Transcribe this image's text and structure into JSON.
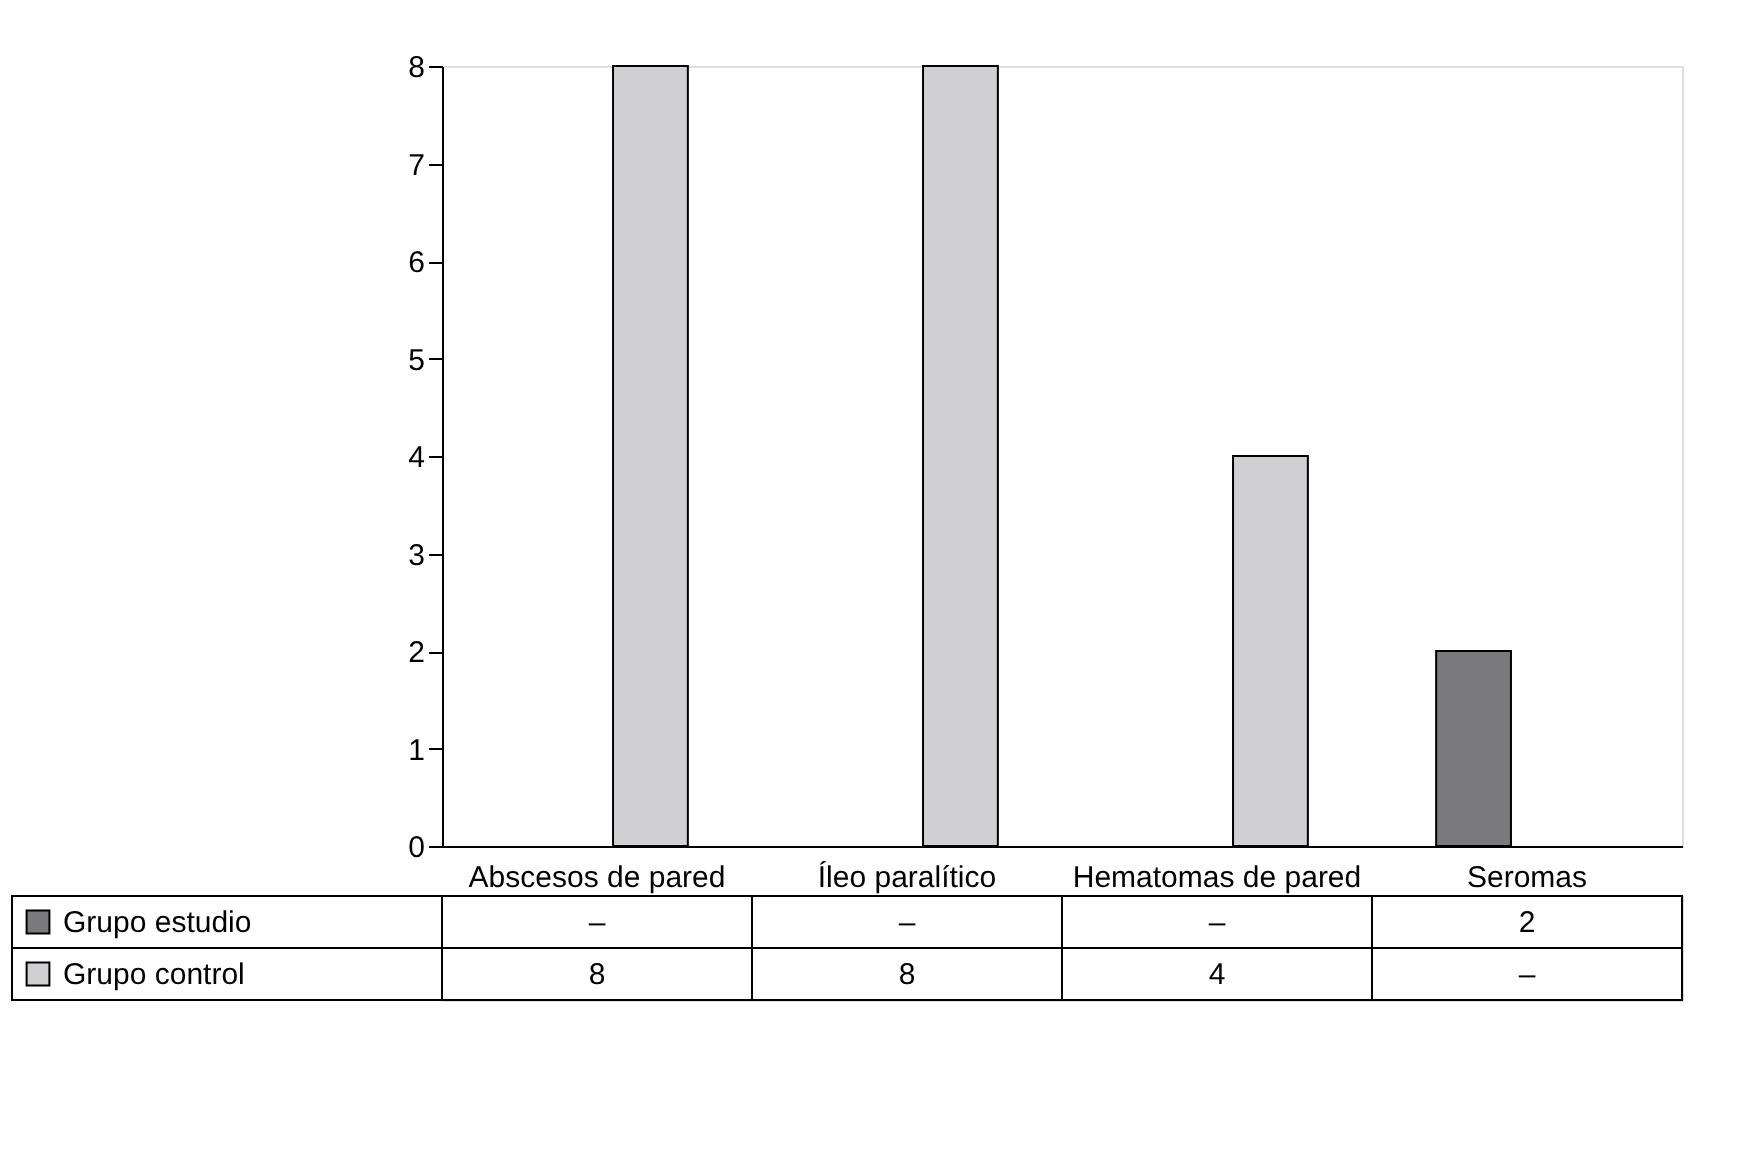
{
  "chart_data": {
    "type": "bar",
    "categories": [
      "Abscesos de pared",
      "Íleo paralítico",
      "Hematomas de pared",
      "Seromas"
    ],
    "series": [
      {
        "name": "Grupo estudio",
        "color": "#7a7a7c",
        "values": [
          null,
          null,
          null,
          2
        ],
        "value_labels": [
          "–",
          "–",
          "–",
          "2"
        ]
      },
      {
        "name": "Grupo control",
        "color": "#d0d0d2",
        "values": [
          8,
          8,
          4,
          null
        ],
        "value_labels": [
          "8",
          "8",
          "4",
          "–"
        ]
      }
    ],
    "ylim": [
      0,
      8
    ],
    "yticks": [
      0,
      1,
      2,
      3,
      4,
      5,
      6,
      7,
      8
    ],
    "grid": false,
    "legend": "bottom left"
  }
}
